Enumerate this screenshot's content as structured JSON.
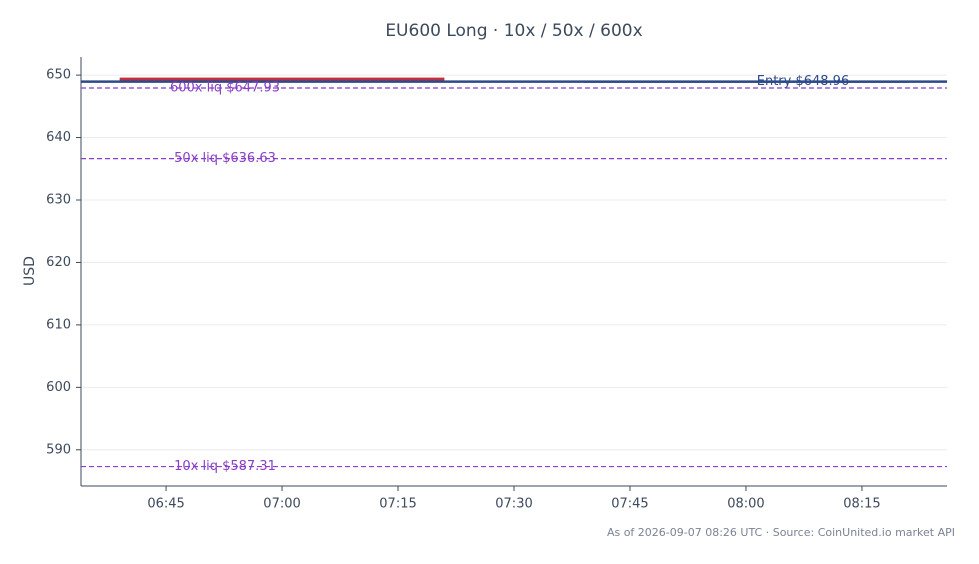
{
  "chart_data": {
    "type": "candlestick",
    "title": "EU600 Long · 10x / 50x / 600x",
    "y_label": "USD",
    "footnote": "As of 2026-09-07 08:26 UTC · Source: CoinUnited.io market API",
    "x": [
      "07:00",
      "08:00"
    ],
    "open": [
      649.6,
      648.8
    ],
    "close": [
      649.0,
      649.0
    ],
    "up_color": "#2d4a8a",
    "down_color": "#c0303f",
    "xlim": [
      "06:34",
      "08:26"
    ],
    "xticks": [
      "06:45",
      "07:00",
      "07:15",
      "07:30",
      "07:45",
      "08:00",
      "08:15"
    ],
    "ylim": [
      584.2,
      652.9
    ],
    "yticks": [
      590,
      600,
      610,
      620,
      630,
      640,
      650
    ],
    "grid": true,
    "levels": [
      {
        "label": "Entry $648.96",
        "value": 648.96,
        "color": "#2d4a8a",
        "style": "solid"
      },
      {
        "label": "600x liq $647.93",
        "value": 647.93,
        "color": "#8a3fc8",
        "style": "dashed"
      },
      {
        "label": "50x liq $636.63",
        "value": 636.63,
        "color": "#8a3fc8",
        "style": "dashed"
      },
      {
        "label": "10x liq $587.31",
        "value": 587.31,
        "color": "#8a3fc8",
        "style": "dashed"
      }
    ]
  }
}
